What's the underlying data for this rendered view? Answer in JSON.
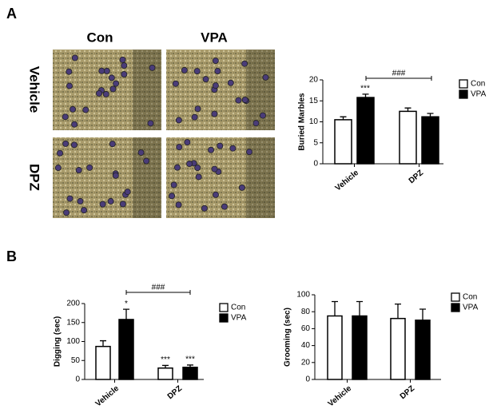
{
  "panels": [
    "A",
    "B"
  ],
  "photos": {
    "columns": [
      "Con",
      "VPA"
    ],
    "rows": [
      "Vehicle",
      "DPZ"
    ]
  },
  "chart_data": [
    {
      "type": "bar",
      "ylabel": "Buried Marbles",
      "categories": [
        "Vehicle",
        "DPZ"
      ],
      "series": [
        {
          "name": "Con",
          "color": "#ffffff",
          "values": [
            10.5,
            12.5
          ],
          "errors": [
            0.7,
            0.8
          ]
        },
        {
          "name": "VPA",
          "color": "#000000",
          "values": [
            15.8,
            11.2
          ],
          "errors": [
            0.8,
            0.8
          ]
        }
      ],
      "ylim": [
        0,
        20
      ],
      "yticks": [
        0,
        5,
        10,
        15,
        20
      ],
      "annotations": [
        "***",
        "###"
      ],
      "legend": "right"
    },
    {
      "type": "bar",
      "ylabel": "Digging (sec)",
      "categories": [
        "Vehicle",
        "DPZ"
      ],
      "series": [
        {
          "name": "Con",
          "color": "#ffffff",
          "values": [
            87,
            30
          ],
          "errors": [
            15,
            7
          ]
        },
        {
          "name": "VPA",
          "color": "#000000",
          "values": [
            158,
            32
          ],
          "errors": [
            27,
            6
          ]
        }
      ],
      "ylim": [
        0,
        200
      ],
      "yticks": [
        0,
        50,
        100,
        150,
        200
      ],
      "annotations": [
        "*",
        "***",
        "***",
        "###"
      ],
      "legend": "right"
    },
    {
      "type": "bar",
      "ylabel": "Grooming (sec)",
      "categories": [
        "Vehicle",
        "DPZ"
      ],
      "series": [
        {
          "name": "Con",
          "color": "#ffffff",
          "values": [
            75,
            72
          ],
          "errors": [
            17,
            17
          ]
        },
        {
          "name": "VPA",
          "color": "#000000",
          "values": [
            75,
            70
          ],
          "errors": [
            17,
            13
          ]
        }
      ],
      "ylim": [
        0,
        100
      ],
      "yticks": [
        0,
        20,
        40,
        60,
        80,
        100
      ],
      "annotations": [],
      "legend": "right"
    }
  ]
}
